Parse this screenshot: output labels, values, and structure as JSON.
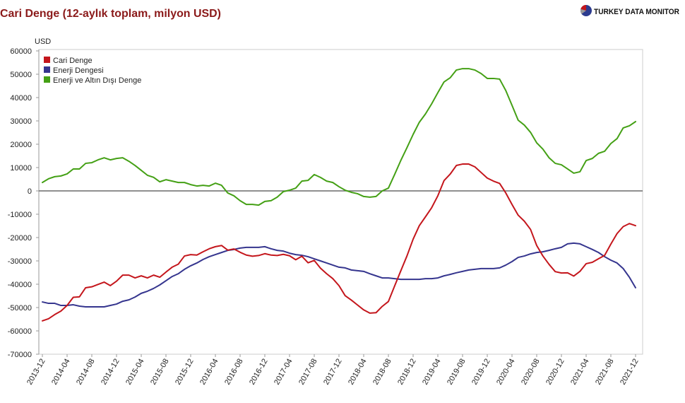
{
  "logo": {
    "text": "TURKEY DATA MONITOR",
    "icon": "pie-globe-icon",
    "icon_colors": [
      "#2c3b8f",
      "#c4161c",
      "#9a9a9a"
    ]
  },
  "colors": {
    "title": "#8b1a1a",
    "zero_line": "#6b6b6b"
  },
  "chart_data": {
    "type": "line",
    "title": "Cari Denge (12-aylık toplam, milyon USD)",
    "ylabel": "USD",
    "ylim": [
      -70000,
      60000
    ],
    "yticks": [
      60000,
      50000,
      40000,
      30000,
      20000,
      10000,
      0,
      -10000,
      -20000,
      -30000,
      -40000,
      -50000,
      -60000,
      -70000
    ],
    "grid": false,
    "zero_line": true,
    "legend": "top-left",
    "x": [
      "2013-12",
      "2014-01",
      "2014-02",
      "2014-03",
      "2014-04",
      "2014-05",
      "2014-06",
      "2014-07",
      "2014-08",
      "2014-09",
      "2014-10",
      "2014-11",
      "2014-12",
      "2015-01",
      "2015-02",
      "2015-03",
      "2015-04",
      "2015-05",
      "2015-06",
      "2015-07",
      "2015-08",
      "2015-09",
      "2015-10",
      "2015-11",
      "2015-12",
      "2016-01",
      "2016-02",
      "2016-03",
      "2016-04",
      "2016-05",
      "2016-06",
      "2016-07",
      "2016-08",
      "2016-09",
      "2016-10",
      "2016-11",
      "2016-12",
      "2017-01",
      "2017-02",
      "2017-03",
      "2017-04",
      "2017-05",
      "2017-06",
      "2017-07",
      "2017-08",
      "2017-09",
      "2017-10",
      "2017-11",
      "2017-12",
      "2018-01",
      "2018-02",
      "2018-03",
      "2018-04",
      "2018-05",
      "2018-06",
      "2018-07",
      "2018-08",
      "2018-09",
      "2018-10",
      "2018-11",
      "2018-12",
      "2019-01",
      "2019-02",
      "2019-03",
      "2019-04",
      "2019-05",
      "2019-06",
      "2019-07",
      "2019-08",
      "2019-09",
      "2019-10",
      "2019-11",
      "2019-12",
      "2020-01",
      "2020-02",
      "2020-03",
      "2020-04",
      "2020-05",
      "2020-06",
      "2020-07",
      "2020-08",
      "2020-09",
      "2020-10",
      "2020-11",
      "2020-12",
      "2021-01",
      "2021-02",
      "2021-03",
      "2021-04",
      "2021-05",
      "2021-06",
      "2021-07",
      "2021-08",
      "2021-09",
      "2021-10",
      "2021-11",
      "2021-12"
    ],
    "xticks": [
      "2013-12",
      "2014-04",
      "2014-08",
      "2014-12",
      "2015-04",
      "2015-08",
      "2015-12",
      "2016-04",
      "2016-08",
      "2016-12",
      "2017-04",
      "2017-08",
      "2017-12",
      "2018-04",
      "2018-08",
      "2018-12",
      "2019-04",
      "2019-08",
      "2019-12",
      "2020-04",
      "2020-08",
      "2020-12",
      "2021-04",
      "2021-08",
      "2021-12"
    ],
    "series": [
      {
        "name": "Cari Denge",
        "color": "#c4161c",
        "values": [
          -55700,
          -54800,
          -53000,
          -51500,
          -49100,
          -45600,
          -45400,
          -41500,
          -41100,
          -40100,
          -39100,
          -40600,
          -38700,
          -36100,
          -36100,
          -37300,
          -36400,
          -37300,
          -36100,
          -37000,
          -34800,
          -32700,
          -31400,
          -27900,
          -27300,
          -27500,
          -26100,
          -24800,
          -23900,
          -23400,
          -25400,
          -24900,
          -26300,
          -27500,
          -28000,
          -27700,
          -26900,
          -27500,
          -27700,
          -27200,
          -27800,
          -29500,
          -28000,
          -30800,
          -29800,
          -33100,
          -35500,
          -37600,
          -40600,
          -44900,
          -46800,
          -48900,
          -51000,
          -52400,
          -52200,
          -49500,
          -47400,
          -40800,
          -34300,
          -27900,
          -20700,
          -14900,
          -11100,
          -7200,
          -2100,
          4400,
          7200,
          10900,
          11500,
          11500,
          10300,
          7900,
          5500,
          4200,
          3200,
          -900,
          -5800,
          -10400,
          -13000,
          -16500,
          -23400,
          -27900,
          -31500,
          -34600,
          -35200,
          -35100,
          -36500,
          -34500,
          -31200,
          -30600,
          -29100,
          -27600,
          -22800,
          -18300,
          -15300,
          -14000,
          -14900
        ]
      },
      {
        "name": "Enerji Dengesi",
        "color": "#35358e",
        "values": [
          -47600,
          -48200,
          -48200,
          -49100,
          -49100,
          -48800,
          -49400,
          -49700,
          -49700,
          -49700,
          -49700,
          -49100,
          -48500,
          -47300,
          -46700,
          -45500,
          -43900,
          -43000,
          -41800,
          -40300,
          -38500,
          -36700,
          -35500,
          -33600,
          -32100,
          -30900,
          -29400,
          -28200,
          -27300,
          -26400,
          -25500,
          -25100,
          -24500,
          -24200,
          -24200,
          -24200,
          -23900,
          -24800,
          -25500,
          -25800,
          -26700,
          -27300,
          -27600,
          -28200,
          -29100,
          -30000,
          -30900,
          -31800,
          -32700,
          -33000,
          -33900,
          -34200,
          -34500,
          -35500,
          -36400,
          -37300,
          -37300,
          -37600,
          -37900,
          -37900,
          -37900,
          -37900,
          -37600,
          -37600,
          -37300,
          -36400,
          -35800,
          -35100,
          -34500,
          -33900,
          -33600,
          -33300,
          -33300,
          -33300,
          -33000,
          -31800,
          -30300,
          -28500,
          -27900,
          -27000,
          -26400,
          -26100,
          -25500,
          -24800,
          -24200,
          -22700,
          -22400,
          -22700,
          -23900,
          -25100,
          -26400,
          -28200,
          -29700,
          -30900,
          -33300,
          -37000,
          -41500
        ]
      },
      {
        "name": "Enerji ve Altın Dışı Denge",
        "color": "#44a015",
        "values": [
          3600,
          5200,
          6100,
          6400,
          7300,
          9400,
          9400,
          11800,
          12100,
          13300,
          14200,
          13300,
          13900,
          14200,
          12700,
          10900,
          8800,
          6700,
          5800,
          3900,
          4800,
          4200,
          3600,
          3600,
          2700,
          2100,
          2400,
          2100,
          3300,
          2400,
          -900,
          -2100,
          -4200,
          -5800,
          -5800,
          -6100,
          -4500,
          -4200,
          -2700,
          -300,
          300,
          1200,
          4200,
          4500,
          7000,
          5800,
          4200,
          3600,
          1800,
          300,
          -600,
          -1200,
          -2400,
          -2700,
          -2400,
          0,
          1200,
          7000,
          13000,
          18500,
          24200,
          29400,
          33000,
          37300,
          42100,
          46700,
          48500,
          51800,
          52400,
          52400,
          51800,
          50300,
          48200,
          48200,
          47900,
          43000,
          36700,
          30300,
          28200,
          25100,
          20600,
          17900,
          14200,
          11800,
          11200,
          9400,
          7600,
          8200,
          13000,
          13900,
          16100,
          17000,
          20300,
          22400,
          27000,
          27900,
          29700
        ]
      }
    ]
  }
}
